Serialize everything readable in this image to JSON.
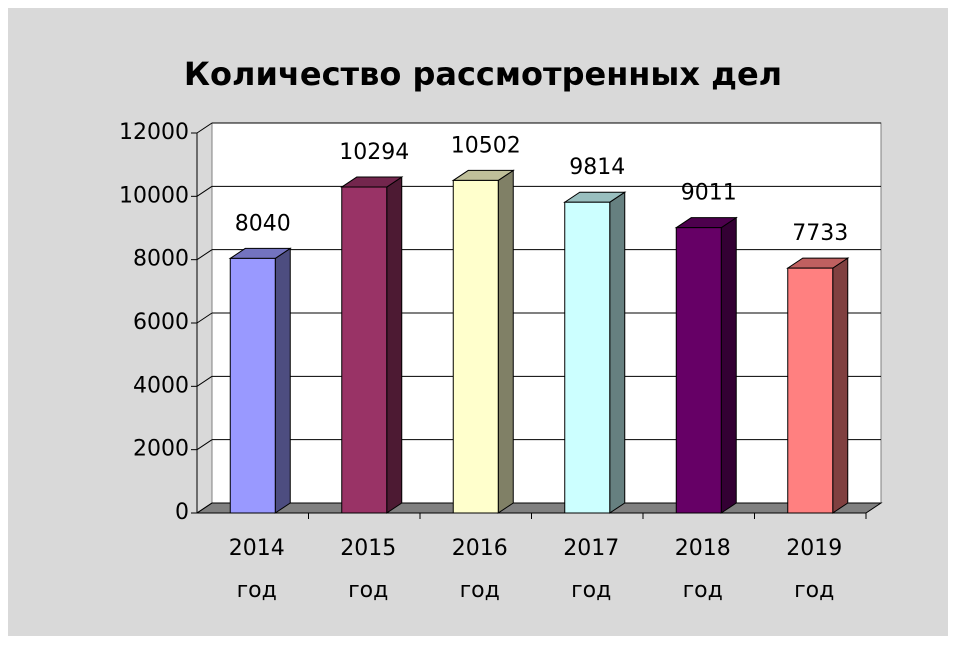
{
  "chart_data": {
    "type": "bar3d",
    "title": "Количество рассмотренных дел",
    "categories": [
      "2014 год",
      "2015 год",
      "2016 год",
      "2017 год",
      "2018 год",
      "2019 год"
    ],
    "values": [
      8040,
      10294,
      10502,
      9814,
      9011,
      7733
    ],
    "colors": [
      "#9999ff",
      "#993366",
      "#ffffcc",
      "#ccffff",
      "#660066",
      "#ff8080"
    ],
    "ylim": [
      0,
      12000
    ],
    "yticks": [
      0,
      2000,
      4000,
      6000,
      8000,
      10000,
      12000
    ],
    "grid": true
  }
}
